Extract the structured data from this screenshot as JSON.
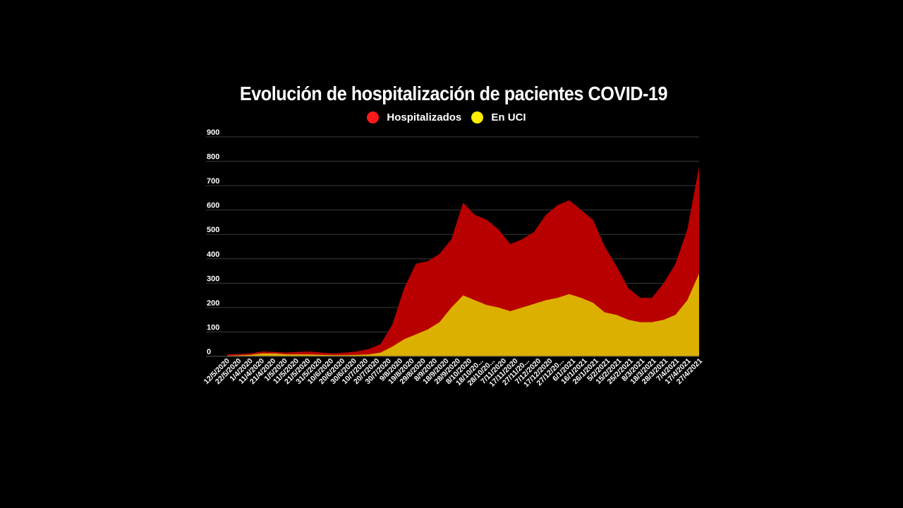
{
  "chart_data": {
    "type": "area",
    "title": "Evolución de hospitalización de pacientes COVID-19",
    "xlabel": "",
    "ylabel": "",
    "ylim": [
      0,
      900
    ],
    "grid": true,
    "legend": "top-center",
    "y_ticks": [
      0,
      100,
      200,
      300,
      400,
      500,
      600,
      700,
      800,
      900
    ],
    "x_tick_labels": [
      "12/5/2020",
      "22/5/2020",
      "1/4/2020",
      "11/4/2020",
      "21/4/2020",
      "1/5/2020",
      "11/5/2020",
      "21/5/2020",
      "31/5/2020",
      "10/6/2020",
      "20/6/2020",
      "30/6/2020",
      "10/7/2020",
      "20/7/2020",
      "30/7/2020",
      "9/8/2020",
      "19/8/2020",
      "29/8/2020",
      "8/9/2020",
      "18/9/2020",
      "28/9/2020",
      "8/10/2020",
      "18/10/20...",
      "28/10/20...",
      "7/11/2020",
      "17/11/2020",
      "27/11/20...",
      "7/12/2020",
      "17/12/2020",
      "27/12/20...",
      "6/1/2021",
      "16/1/2021",
      "26/1/2021",
      "5/2/2021",
      "15/2/2021",
      "25/2/2021",
      "8/3/2021",
      "18/3/2021",
      "28/3/2021",
      "7/4/2021",
      "17/4/2021",
      "27/4/2021"
    ],
    "series": [
      {
        "name": "Hospitalizados",
        "color": "#b80000",
        "values": [
          8,
          10,
          12,
          20,
          18,
          15,
          18,
          20,
          15,
          12,
          15,
          20,
          30,
          50,
          130,
          280,
          380,
          390,
          420,
          480,
          630,
          580,
          560,
          520,
          460,
          480,
          510,
          580,
          620,
          640,
          600,
          560,
          450,
          370,
          280,
          240,
          240,
          300,
          380,
          520,
          780
        ]
      },
      {
        "name": "En UCI",
        "color": "#dcb000",
        "values": [
          2,
          4,
          6,
          12,
          12,
          8,
          8,
          8,
          6,
          5,
          5,
          6,
          8,
          15,
          40,
          70,
          90,
          110,
          140,
          200,
          250,
          230,
          210,
          200,
          185,
          200,
          215,
          230,
          240,
          255,
          240,
          220,
          180,
          170,
          150,
          140,
          140,
          150,
          170,
          230,
          340
        ]
      }
    ]
  },
  "legend_colors": {
    "Hospitalizados": "#ff1a1a",
    "En UCI": "#ffee00"
  }
}
